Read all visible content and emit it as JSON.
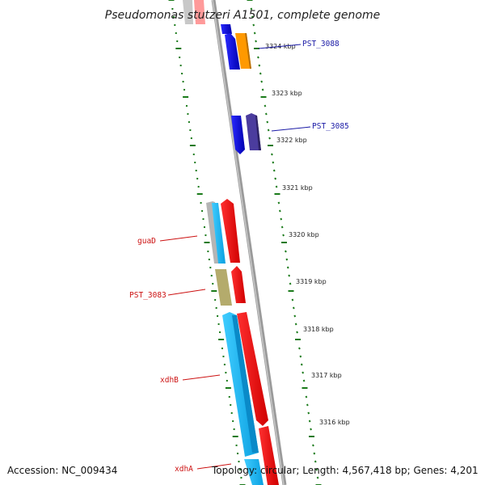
{
  "header": {
    "title": "Pseudomonas stutzeri A1501, complete genome"
  },
  "footer": {
    "accession": "Accession: NC_009434",
    "topology": "Topology: circular; Length: 4,567,418 bp; Genes: 4,201"
  },
  "ruler": {
    "labels": [
      "3324 kbp",
      "3323 kbp",
      "3322 kbp",
      "3321 kbp",
      "3320 kbp",
      "3319 kbp",
      "3318 kbp",
      "3317 kbp",
      "3316 kbp"
    ]
  },
  "gene_labels": {
    "pst_3088": "PST_3088",
    "pst_3085": "PST_3085",
    "guaD": "guaD",
    "pst_3083": "PST_3083",
    "xdhB": "xdhB",
    "xdhA": "xdhA"
  },
  "colors": {
    "backbone": "#8a8a8a",
    "tick": "#1a7a1a",
    "label_blue": "#1a1aa6",
    "label_red": "#cc1111",
    "blue": "#0a0ae6",
    "orange": "#ff9900",
    "indigo": "#4a3a9a",
    "red": "#ff0000",
    "cyan": "#18b8f0",
    "gray": "#b8b8b8",
    "olive": "#b7ad6e",
    "pink": "#ff8080"
  }
}
